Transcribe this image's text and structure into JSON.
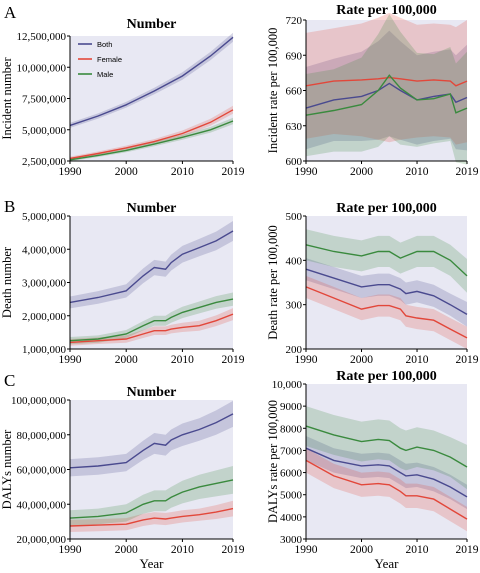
{
  "figure": {
    "x_axis_label": "Year",
    "colors": {
      "both": "#4a4a8f",
      "female": "#e2473a",
      "male": "#3a8a3e",
      "panel_bg": "#e8e8f3"
    }
  },
  "chart_data": [
    {
      "id": "A_number",
      "type": "line",
      "panel_label": "A",
      "title": "Number",
      "ylabel": "Incident number",
      "xlim": [
        1990,
        2019
      ],
      "ylim": [
        2500000,
        12500000
      ],
      "xticks": [
        1990,
        2000,
        2010,
        2019
      ],
      "yticks": [
        2500000,
        5000000,
        7500000,
        10000000,
        12500000
      ],
      "yticklabels": [
        "2,500,000",
        "5,000,000",
        "7,500,000",
        "10,000,000",
        "12,500,000"
      ],
      "legend": {
        "entries": [
          "Both",
          "Female",
          "Male"
        ],
        "position": "top-left"
      },
      "x": [
        1990,
        1995,
        2000,
        2005,
        2010,
        2015,
        2019
      ],
      "series": [
        {
          "name": "Both",
          "key": "both",
          "values": [
            5350000,
            6100000,
            7000000,
            8100000,
            9300000,
            10900000,
            12400000
          ],
          "ci": [
            200000,
            210000,
            230000,
            260000,
            300000,
            330000,
            360000
          ]
        },
        {
          "name": "Female",
          "key": "female",
          "values": [
            2700000,
            3100000,
            3550000,
            4050000,
            4700000,
            5600000,
            6600000
          ],
          "ci": [
            150000,
            160000,
            180000,
            200000,
            240000,
            280000,
            320000
          ]
        },
        {
          "name": "Male",
          "key": "male",
          "values": [
            2600000,
            2950000,
            3350000,
            3850000,
            4400000,
            5000000,
            5700000
          ],
          "ci": [
            120000,
            130000,
            150000,
            170000,
            200000,
            230000,
            260000
          ]
        }
      ]
    },
    {
      "id": "A_rate",
      "type": "line",
      "panel_label": "",
      "title": "Rate per 100,000",
      "ylabel": "Incident rate per 100,000",
      "xlim": [
        1990,
        2019
      ],
      "ylim": [
        600,
        720
      ],
      "xticks": [
        1990,
        2000,
        2010,
        2019
      ],
      "yticks": [
        600,
        630,
        660,
        690,
        720
      ],
      "yticklabels": [
        "600",
        "630",
        "660",
        "690",
        "720"
      ],
      "x": [
        1990,
        1995,
        2000,
        2003,
        2005,
        2007,
        2010,
        2013,
        2016,
        2017,
        2019
      ],
      "series": [
        {
          "name": "Both",
          "key": "both",
          "values": [
            645,
            652,
            655,
            660,
            666,
            660,
            652,
            655,
            657,
            650,
            654
          ],
          "ci": [
            35,
            35,
            38,
            42,
            45,
            42,
            38,
            38,
            38,
            40,
            45
          ]
        },
        {
          "name": "Female",
          "key": "female",
          "values": [
            664,
            668,
            669,
            670,
            671,
            670,
            668,
            669,
            668,
            664,
            668
          ],
          "ci": [
            45,
            45,
            48,
            52,
            55,
            52,
            48,
            48,
            48,
            50,
            52
          ]
        },
        {
          "name": "Male",
          "key": "male",
          "values": [
            639,
            643,
            648,
            660,
            673,
            662,
            652,
            653,
            657,
            641,
            645
          ],
          "ci": [
            35,
            35,
            40,
            48,
            52,
            48,
            40,
            38,
            40,
            42,
            48
          ]
        }
      ]
    },
    {
      "id": "B_number",
      "type": "line",
      "panel_label": "B",
      "title": "Number",
      "ylabel": "Death number",
      "xlim": [
        1990,
        2019
      ],
      "ylim": [
        1000000,
        5000000
      ],
      "xticks": [
        1990,
        2000,
        2010,
        2019
      ],
      "yticks": [
        1000000,
        2000000,
        3000000,
        4000000,
        5000000
      ],
      "yticklabels": [
        "1,000,000",
        "2,000,000",
        "3,000,000",
        "4,000,000",
        "5,000,000"
      ],
      "x": [
        1990,
        1995,
        2000,
        2003,
        2005,
        2007,
        2008,
        2010,
        2013,
        2016,
        2019
      ],
      "series": [
        {
          "name": "Both",
          "key": "both",
          "values": [
            2400000,
            2550000,
            2750000,
            3200000,
            3450000,
            3400000,
            3600000,
            3850000,
            4050000,
            4250000,
            4550000
          ],
          "ci": [
            180000,
            190000,
            200000,
            220000,
            230000,
            230000,
            240000,
            250000,
            260000,
            280000,
            300000
          ]
        },
        {
          "name": "Female",
          "key": "female",
          "values": [
            1200000,
            1250000,
            1300000,
            1450000,
            1550000,
            1550000,
            1600000,
            1650000,
            1700000,
            1850000,
            2050000
          ],
          "ci": [
            100000,
            100000,
            110000,
            120000,
            130000,
            130000,
            130000,
            140000,
            150000,
            160000,
            180000
          ]
        },
        {
          "name": "Male",
          "key": "male",
          "values": [
            1250000,
            1300000,
            1450000,
            1700000,
            1850000,
            1850000,
            1950000,
            2100000,
            2250000,
            2400000,
            2500000
          ],
          "ci": [
            110000,
            110000,
            120000,
            140000,
            150000,
            150000,
            160000,
            170000,
            180000,
            190000,
            200000
          ]
        }
      ]
    },
    {
      "id": "B_rate",
      "type": "line",
      "panel_label": "",
      "title": "Rate per 100,000",
      "ylabel": "Death rate per 100,000",
      "xlim": [
        1990,
        2019
      ],
      "ylim": [
        200,
        500
      ],
      "xticks": [
        1990,
        2000,
        2010,
        2019
      ],
      "yticks": [
        200,
        300,
        400,
        500
      ],
      "yticklabels": [
        "200",
        "300",
        "400",
        "500"
      ],
      "x": [
        1990,
        1995,
        2000,
        2003,
        2005,
        2007,
        2008,
        2010,
        2013,
        2016,
        2019
      ],
      "series": [
        {
          "name": "Both",
          "key": "both",
          "values": [
            380,
            360,
            340,
            345,
            345,
            335,
            325,
            330,
            320,
            300,
            278
          ],
          "ci": [
            25,
            25,
            25,
            25,
            25,
            25,
            25,
            25,
            25,
            25,
            28
          ]
        },
        {
          "name": "Female",
          "key": "female",
          "values": [
            340,
            315,
            290,
            298,
            298,
            290,
            275,
            270,
            265,
            245,
            225
          ],
          "ci": [
            25,
            25,
            25,
            25,
            25,
            25,
            25,
            25,
            25,
            25,
            25
          ]
        },
        {
          "name": "Male",
          "key": "male",
          "values": [
            435,
            420,
            410,
            420,
            420,
            405,
            410,
            420,
            420,
            400,
            365
          ],
          "ci": [
            35,
            35,
            35,
            35,
            35,
            35,
            35,
            35,
            35,
            35,
            38
          ]
        }
      ]
    },
    {
      "id": "C_number",
      "type": "line",
      "panel_label": "C",
      "title": "Number",
      "ylabel": "DALYs number",
      "xlim": [
        1990,
        2019
      ],
      "ylim": [
        20000000,
        100000000
      ],
      "xticks": [
        1990,
        2000,
        2010,
        2019
      ],
      "yticks": [
        20000000,
        40000000,
        60000000,
        80000000,
        100000000
      ],
      "yticklabels": [
        "20,000,000",
        "40,000,000",
        "60,000,000",
        "80,000,000",
        "100,000,000"
      ],
      "x": [
        1990,
        1995,
        2000,
        2003,
        2005,
        2007,
        2008,
        2010,
        2013,
        2016,
        2019
      ],
      "series": [
        {
          "name": "Both",
          "key": "both",
          "values": [
            61000000,
            62000000,
            64000000,
            71000000,
            75000000,
            74000000,
            77000000,
            80000000,
            83000000,
            87000000,
            92000000
          ],
          "ci": [
            5000000,
            5000000,
            5000000,
            5500000,
            6000000,
            6000000,
            6000000,
            6500000,
            6500000,
            7000000,
            7500000
          ]
        },
        {
          "name": "Female",
          "key": "female",
          "values": [
            27500000,
            28000000,
            28500000,
            31000000,
            32000000,
            31500000,
            32000000,
            33000000,
            34000000,
            35500000,
            37500000
          ],
          "ci": [
            3500000,
            3500000,
            3500000,
            3500000,
            3500000,
            3500000,
            3500000,
            3500000,
            3500000,
            4000000,
            4500000
          ]
        },
        {
          "name": "Male",
          "key": "male",
          "values": [
            32000000,
            33000000,
            35000000,
            40000000,
            42000000,
            42000000,
            44000000,
            47000000,
            50000000,
            52000000,
            54000000
          ],
          "ci": [
            4500000,
            4500000,
            5000000,
            5500000,
            6000000,
            6000000,
            6000000,
            6500000,
            7000000,
            7500000,
            8000000
          ]
        }
      ]
    },
    {
      "id": "C_rate",
      "type": "line",
      "panel_label": "",
      "title": "Rate per 100,000",
      "ylabel": "DALYs rate per 100,000",
      "xlim": [
        1990,
        2019
      ],
      "ylim": [
        3000,
        10000
      ],
      "xticks": [
        1990,
        2000,
        2010,
        2019
      ],
      "yticks": [
        3000,
        4000,
        5000,
        6000,
        7000,
        8000,
        9000,
        10000
      ],
      "yticklabels": [
        "3000",
        "4000",
        "5000",
        "6000",
        "7000",
        "8000",
        "9000",
        "10,000"
      ],
      "x": [
        1990,
        1995,
        2000,
        2003,
        2005,
        2007,
        2008,
        2010,
        2013,
        2016,
        2019
      ],
      "series": [
        {
          "name": "Both",
          "key": "both",
          "values": [
            7100,
            6550,
            6300,
            6350,
            6300,
            6000,
            5850,
            5900,
            5700,
            5350,
            4900
          ],
          "ci": [
            550,
            550,
            550,
            550,
            550,
            550,
            550,
            550,
            550,
            550,
            550
          ]
        },
        {
          "name": "Female",
          "key": "female",
          "values": [
            6550,
            5850,
            5450,
            5500,
            5450,
            5150,
            4950,
            4950,
            4800,
            4350,
            3900
          ],
          "ci": [
            550,
            550,
            550,
            550,
            550,
            550,
            550,
            550,
            550,
            550,
            550
          ]
        },
        {
          "name": "Male",
          "key": "male",
          "values": [
            8100,
            7700,
            7400,
            7500,
            7450,
            7100,
            7000,
            7150,
            7000,
            6700,
            6250
          ],
          "ci": [
            900,
            900,
            900,
            900,
            900,
            900,
            900,
            900,
            900,
            900,
            1000
          ]
        }
      ]
    }
  ]
}
